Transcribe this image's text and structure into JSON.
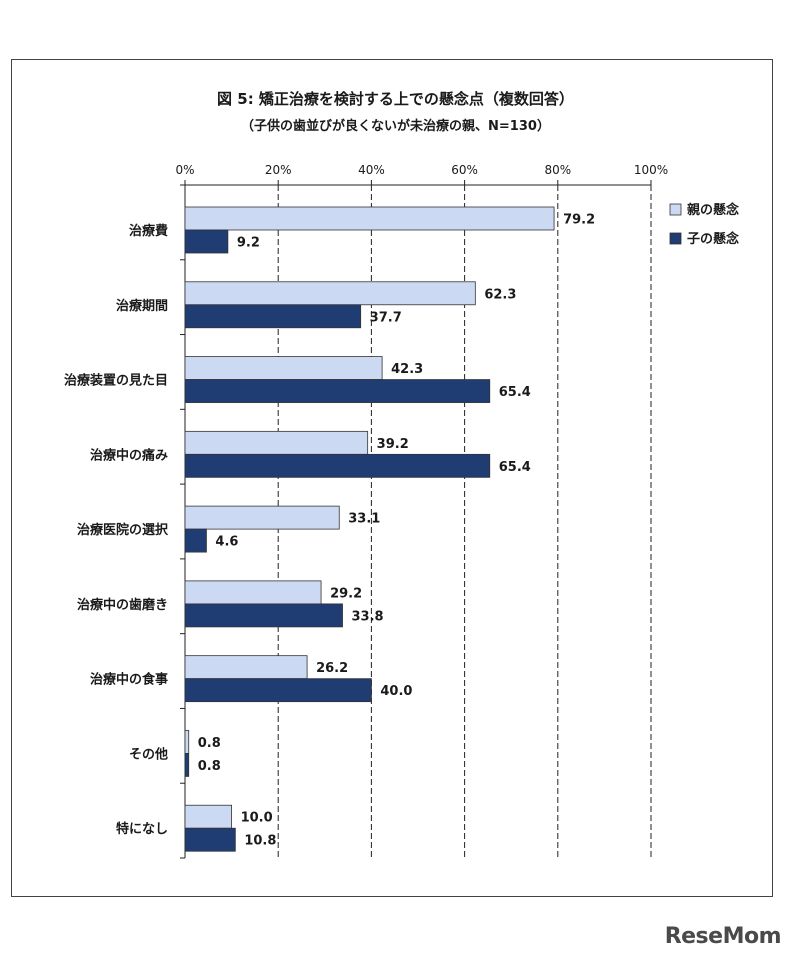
{
  "chart_data": {
    "type": "bar",
    "orientation": "horizontal",
    "title": "図 5:  矯正治療を検討する上での懸念点（複数回答）",
    "subtitle": "（子供の歯並びが良くないが未治療の親、N=130）",
    "categories": [
      "治療費",
      "治療期間",
      "治療装置の見た目",
      "治療中の痛み",
      "治療医院の選択",
      "治療中の歯磨き",
      "治療中の食事",
      "その他",
      "特になし"
    ],
    "series": [
      {
        "name": "親の懸念",
        "color": "#ccd9f2",
        "values": [
          79.2,
          62.3,
          42.3,
          39.2,
          33.1,
          29.2,
          26.2,
          0.8,
          10.0
        ],
        "value_labels": [
          "79.2",
          "62.3",
          "42.3",
          "39.2",
          "33.1",
          "29.2",
          "26.2",
          "0.8",
          "10.0"
        ]
      },
      {
        "name": "子の懸念",
        "color": "#1f3d73",
        "values": [
          9.2,
          37.7,
          65.4,
          65.4,
          4.6,
          33.8,
          40.0,
          0.8,
          10.8
        ],
        "value_labels": [
          "9.2",
          "37.7",
          "65.4",
          "65.4",
          "4.6",
          "33.8",
          "40.0",
          "0.8",
          "10.8"
        ]
      }
    ],
    "xlim": [
      0,
      100
    ],
    "x_ticks": [
      "0%",
      "20%",
      "40%",
      "60%",
      "80%",
      "100%"
    ],
    "x_tick_values": [
      0,
      20,
      40,
      60,
      80,
      100
    ],
    "grid": "vertical dashed",
    "legend_position": "right"
  },
  "watermark": "ReseMom"
}
